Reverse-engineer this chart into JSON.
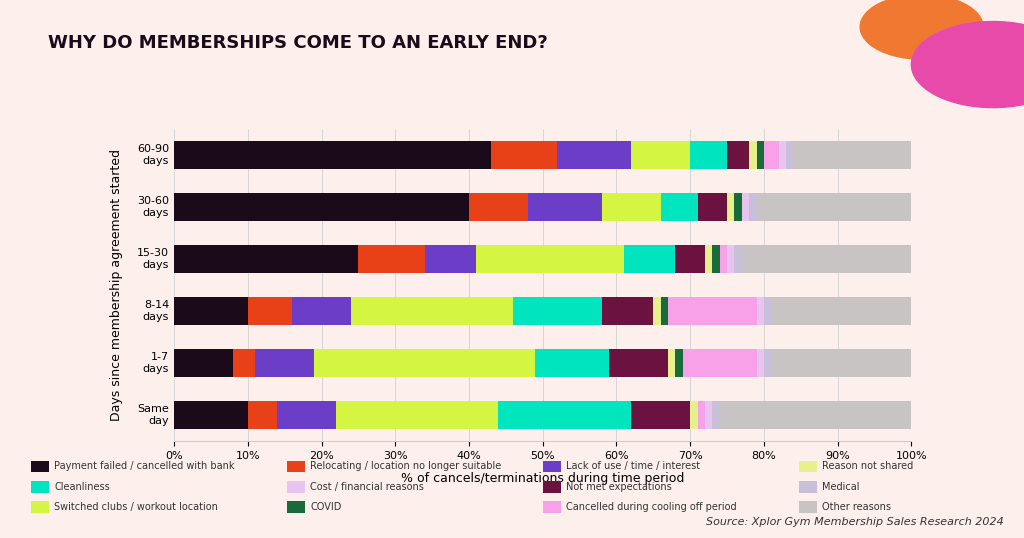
{
  "categories": [
    "Same\nday",
    "1-7\ndays",
    "8-14\ndays",
    "15-30\ndays",
    "30-60\ndays",
    "60-90\ndays"
  ],
  "series": [
    {
      "label": "Payment failed / cancelled with bank",
      "color": "#1a0a1a",
      "values": [
        10,
        8,
        10,
        25,
        40,
        43
      ]
    },
    {
      "label": "Relocating / location no longer suitable",
      "color": "#e84118",
      "values": [
        4,
        3,
        6,
        9,
        8,
        9
      ]
    },
    {
      "label": "Lack of use / time / interest",
      "color": "#6c3ec8",
      "values": [
        8,
        8,
        8,
        7,
        10,
        10
      ]
    },
    {
      "label": "Switched clubs / workout location",
      "color": "#d4f542",
      "values": [
        22,
        30,
        22,
        20,
        8,
        8
      ]
    },
    {
      "label": "Cleanliness",
      "color": "#00e5be",
      "values": [
        18,
        10,
        12,
        7,
        5,
        5
      ]
    },
    {
      "label": "Not met expectations",
      "color": "#6b1240",
      "values": [
        8,
        8,
        7,
        4,
        4,
        3
      ]
    },
    {
      "label": "Reason not shared",
      "color": "#e8f08c",
      "values": [
        1,
        1,
        1,
        1,
        1,
        1
      ]
    },
    {
      "label": "COVID",
      "color": "#1a6b3c",
      "values": [
        0,
        1,
        1,
        1,
        1,
        1
      ]
    },
    {
      "label": "Cancelled during cooling off period",
      "color": "#f8a0e8",
      "values": [
        1,
        10,
        12,
        1,
        0,
        2
      ]
    },
    {
      "label": "Cost / financial reasons",
      "color": "#e8c4f0",
      "values": [
        1,
        1,
        1,
        1,
        1,
        1
      ]
    },
    {
      "label": "Medical",
      "color": "#c8c0d8",
      "values": [
        1,
        1,
        1,
        1,
        1,
        1
      ]
    },
    {
      "label": "Other reasons",
      "color": "#c8c4c4",
      "values": [
        26,
        19,
        19,
        24,
        22,
        16
      ]
    }
  ],
  "title": "WHY DO MEMBERSHIPS COME TO AN EARLY END?",
  "title_bg_color": "#4dd9c0",
  "xlabel": "% of cancels/terminations during time period",
  "ylabel": "Days since membership agreement started",
  "background_color": "#fdf0ec",
  "chart_bg_color": "#fdf0ec",
  "fig_bg_color": "#fdf0ec"
}
